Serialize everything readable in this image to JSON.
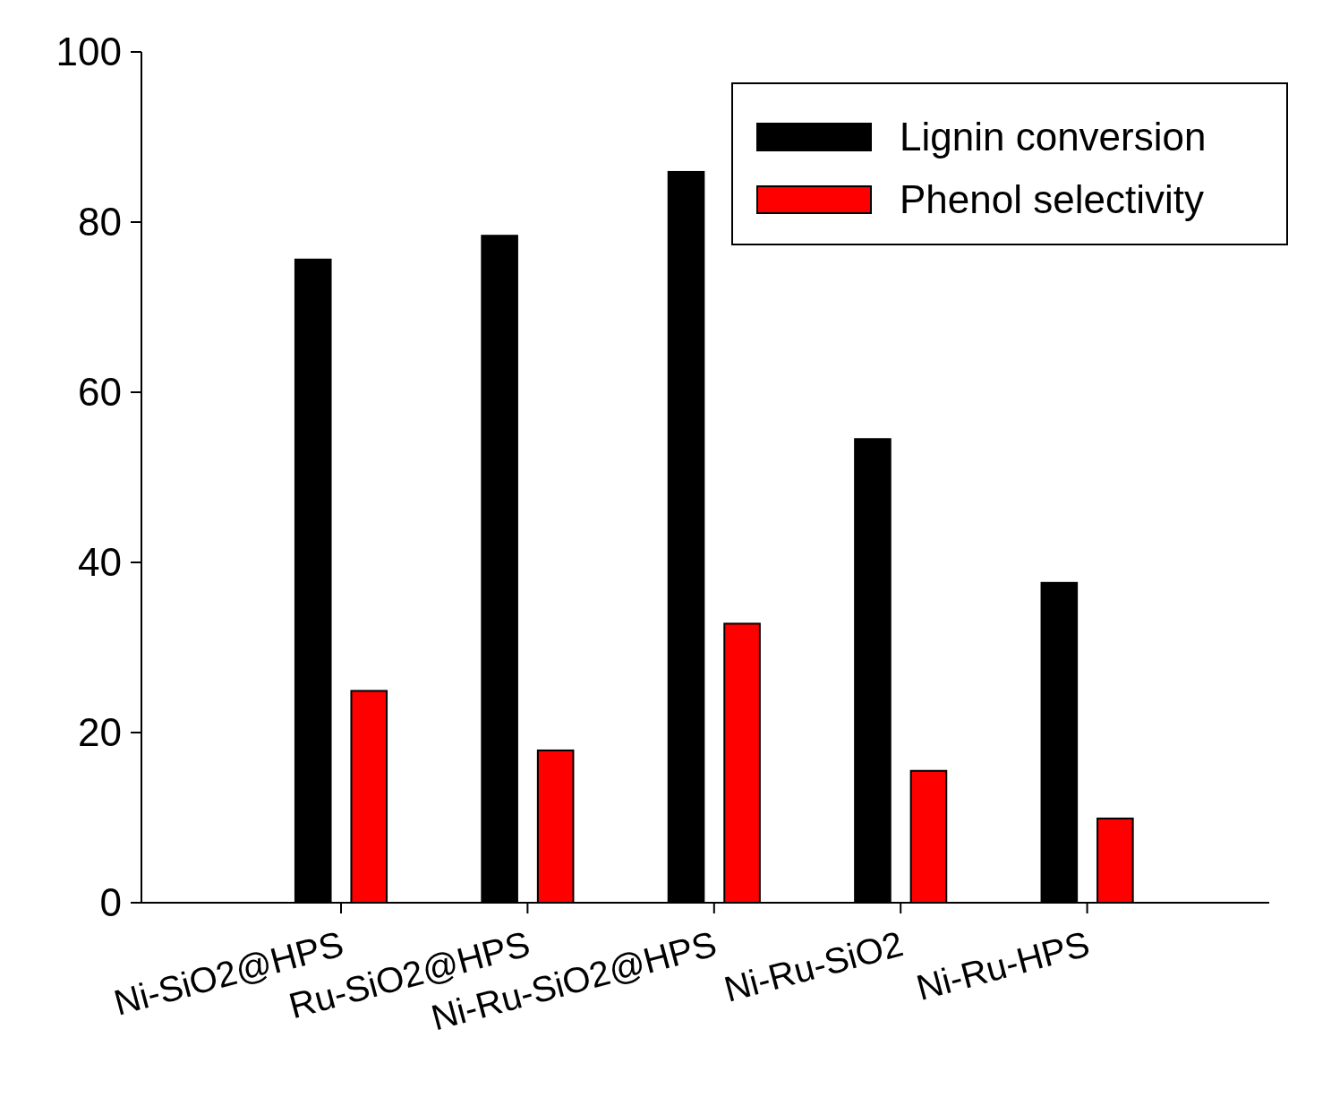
{
  "chart_data": {
    "type": "bar",
    "categories": [
      "Ni-SiO2@HPS",
      "Ru-SiO2@HPS",
      "Ni-Ru-SiO2@HPS",
      "Ni-Ru-SiO2",
      "Ni-Ru-HPS"
    ],
    "series": [
      {
        "name": "Lignin conversion",
        "color": "#000000",
        "values": [
          75.6,
          78.4,
          85.9,
          54.5,
          37.6
        ]
      },
      {
        "name": "Phenol selectivity",
        "color": "#ff0000",
        "values": [
          24.9,
          17.9,
          32.8,
          15.5,
          9.9
        ]
      }
    ],
    "ylim": [
      0,
      100
    ],
    "yticks": [
      0,
      20,
      40,
      60,
      80,
      100
    ],
    "grid": false,
    "legend": "top right"
  }
}
